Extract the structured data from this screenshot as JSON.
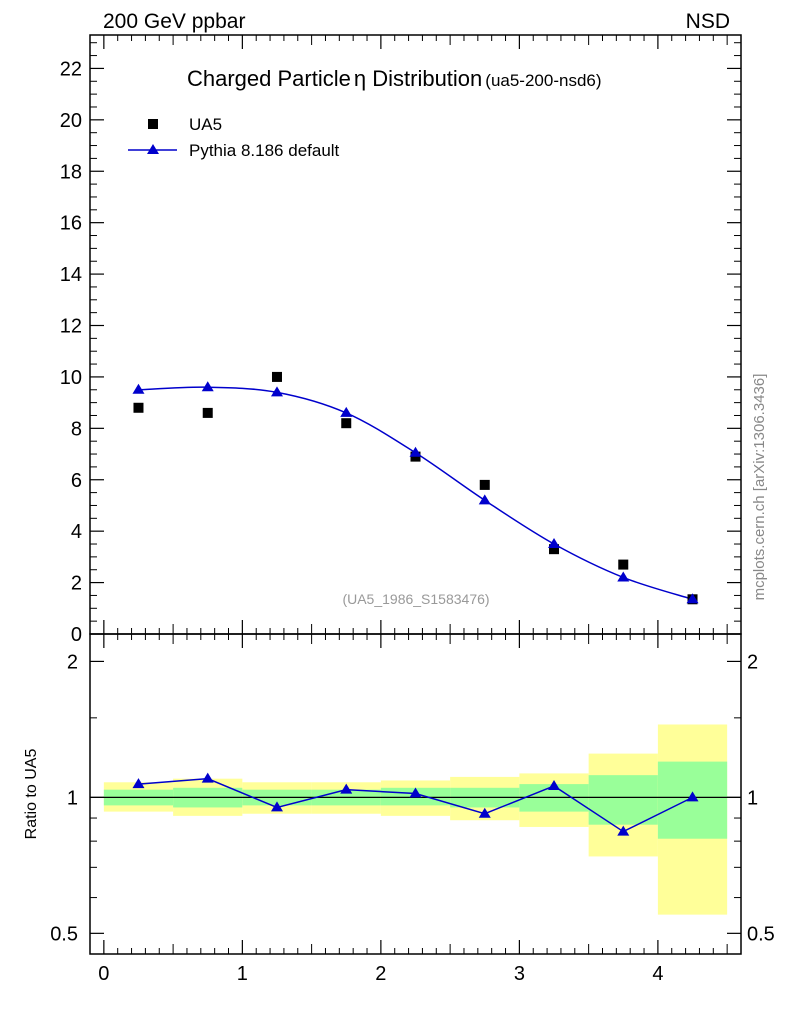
{
  "header": {
    "left": "200 GeV ppbar",
    "right": "NSD"
  },
  "side_credit": "mcplots.cern.ch [arXiv:1306.3436]",
  "chart_data": [
    {
      "type": "scatter",
      "panel": "main",
      "title": "Charged Particle",
      "title_symbol": "η",
      "title_rest": " Distribution",
      "title_id": "(ua5-200-nsd6)",
      "watermark": "(UA5_1986_S1583476)",
      "xlim": [
        -0.1,
        4.6
      ],
      "ylim": [
        0,
        23.3
      ],
      "ytick_values": [
        0,
        2,
        4,
        6,
        8,
        10,
        12,
        14,
        16,
        18,
        20,
        22
      ],
      "ytick_labels": [
        "0",
        "2",
        "4",
        "6",
        "8",
        "10",
        "12",
        "14",
        "16",
        "18",
        "20",
        "22"
      ],
      "legend_position": "top-left",
      "series": [
        {
          "name": "UA5",
          "marker": "square",
          "color": "#000000",
          "x": [
            0.25,
            0.75,
            1.25,
            1.75,
            2.25,
            2.75,
            3.25,
            3.75,
            4.25
          ],
          "y": [
            8.8,
            8.6,
            10.0,
            8.2,
            6.9,
            5.8,
            3.3,
            2.7,
            1.35
          ]
        },
        {
          "name": "Pythia 8.186 default",
          "marker": "triangle",
          "color": "#0000cc",
          "x": [
            0.25,
            0.75,
            1.25,
            1.75,
            2.25,
            2.75,
            3.25,
            3.75,
            4.25
          ],
          "y": [
            9.5,
            9.6,
            9.4,
            8.6,
            7.05,
            5.2,
            3.5,
            2.2,
            1.35
          ]
        }
      ]
    },
    {
      "type": "line",
      "panel": "ratio",
      "ylabel": "Ratio to UA5",
      "scale": "log",
      "xlim": [
        -0.1,
        4.6
      ],
      "ylim": [
        0.45,
        2.3
      ],
      "xtick_values": [
        0,
        1,
        2,
        3,
        4
      ],
      "xtick_labels": [
        "0",
        "1",
        "2",
        "3",
        "4"
      ],
      "ytick_values": [
        0.5,
        1,
        2
      ],
      "ytick_labels": [
        "0.5",
        "1",
        "2"
      ],
      "bins": [
        [
          0.0,
          0.5
        ],
        [
          0.5,
          1.0
        ],
        [
          1.0,
          1.5
        ],
        [
          1.5,
          2.0
        ],
        [
          2.0,
          2.5
        ],
        [
          2.5,
          3.0
        ],
        [
          3.0,
          3.5
        ],
        [
          3.5,
          4.0
        ],
        [
          4.0,
          4.5
        ]
      ],
      "band_outer": [
        [
          0.93,
          1.08
        ],
        [
          0.91,
          1.1
        ],
        [
          0.92,
          1.08
        ],
        [
          0.92,
          1.08
        ],
        [
          0.91,
          1.09
        ],
        [
          0.89,
          1.11
        ],
        [
          0.86,
          1.13
        ],
        [
          0.74,
          1.25
        ],
        [
          0.55,
          1.45
        ]
      ],
      "band_inner": [
        [
          0.96,
          1.04
        ],
        [
          0.95,
          1.05
        ],
        [
          0.96,
          1.04
        ],
        [
          0.96,
          1.04
        ],
        [
          0.96,
          1.05
        ],
        [
          0.95,
          1.05
        ],
        [
          0.93,
          1.07
        ],
        [
          0.87,
          1.12
        ],
        [
          0.81,
          1.2
        ]
      ],
      "band_outer_color": "#ffff99",
      "band_inner_color": "#99ff99",
      "series": [
        {
          "name": "Pythia 8.186 default",
          "marker": "triangle",
          "color": "#0000cc",
          "x": [
            0.25,
            0.75,
            1.25,
            1.75,
            2.25,
            2.75,
            3.25,
            3.75,
            4.25
          ],
          "y": [
            1.07,
            1.1,
            0.95,
            1.04,
            1.02,
            0.92,
            1.06,
            0.84,
            1.0
          ]
        }
      ]
    }
  ]
}
